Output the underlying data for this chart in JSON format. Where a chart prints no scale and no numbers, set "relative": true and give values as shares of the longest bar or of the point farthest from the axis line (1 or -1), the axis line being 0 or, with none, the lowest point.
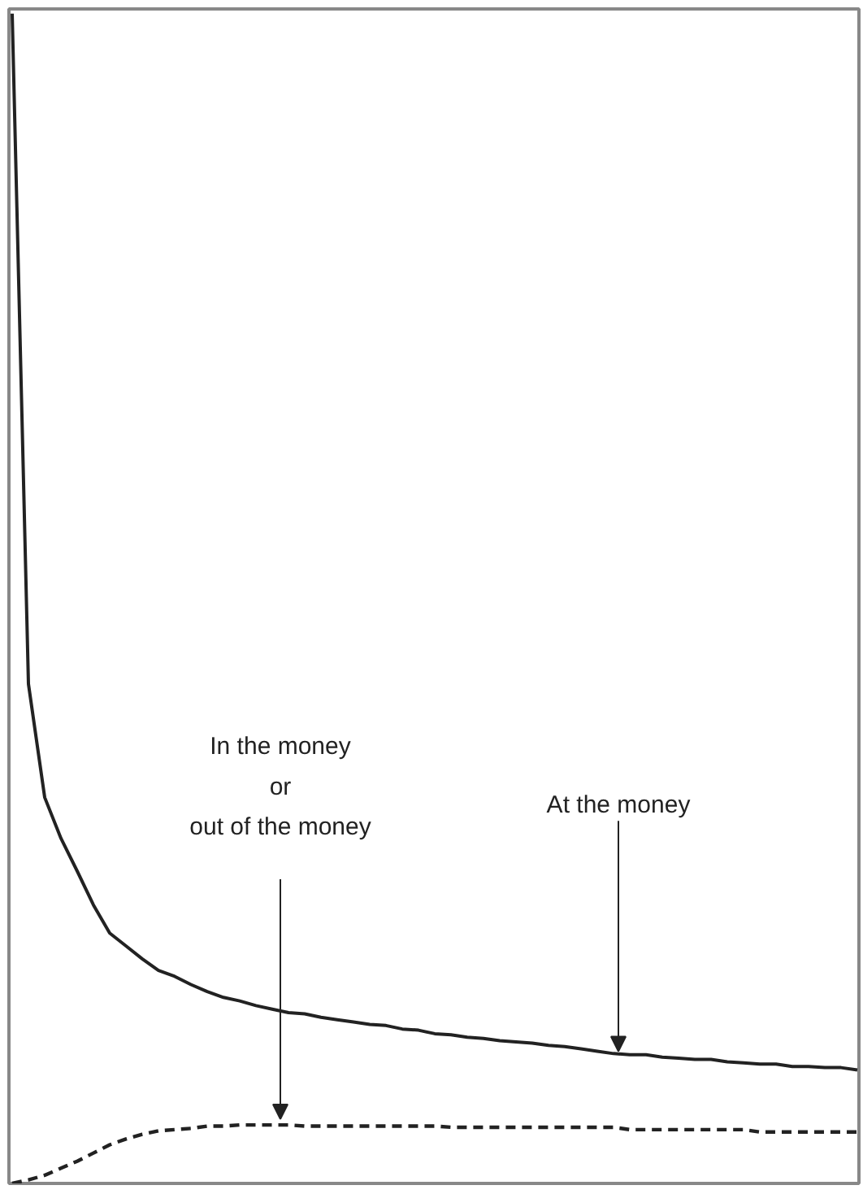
{
  "chart_data": {
    "type": "line",
    "relative": true,
    "grid": false,
    "marker": "none",
    "categories": [
      null,
      null,
      null,
      null,
      null,
      null,
      null,
      null,
      null,
      null,
      null,
      null,
      null,
      null,
      null,
      null,
      null,
      null,
      null,
      null,
      null,
      null,
      null,
      null,
      null,
      null,
      null,
      null,
      null,
      null,
      null,
      null,
      null,
      null,
      null,
      null,
      null,
      null,
      null,
      null,
      null,
      null,
      null,
      null,
      null,
      null,
      null,
      null,
      null,
      null,
      null,
      null,
      null
    ],
    "series": [
      {
        "color": "#222222",
        "line_style": "solid",
        "values": [
          1.0,
          0.427,
          0.33,
          0.295,
          0.267,
          0.238,
          0.214,
          0.203,
          0.192,
          0.182,
          0.177,
          0.17,
          0.164,
          0.159,
          0.156,
          0.152,
          0.149,
          0.146,
          0.145,
          0.142,
          0.14,
          0.138,
          0.136,
          0.135,
          0.132,
          0.131,
          0.128,
          0.127,
          0.125,
          0.124,
          0.122,
          0.121,
          0.12,
          0.118,
          0.117,
          0.115,
          0.113,
          0.111,
          0.11,
          0.11,
          0.108,
          0.107,
          0.106,
          0.106,
          0.104,
          0.103,
          0.102,
          0.102,
          0.1,
          0.1,
          0.099,
          0.099,
          0.097
        ]
      },
      {
        "color": "#222222",
        "line_style": "dashed",
        "values": [
          0.0,
          0.003,
          0.007,
          0.013,
          0.019,
          0.026,
          0.033,
          0.038,
          0.042,
          0.045,
          0.046,
          0.047,
          0.049,
          0.049,
          0.05,
          0.05,
          0.05,
          0.05,
          0.049,
          0.049,
          0.049,
          0.049,
          0.049,
          0.049,
          0.049,
          0.049,
          0.049,
          0.048,
          0.048,
          0.048,
          0.048,
          0.048,
          0.048,
          0.048,
          0.048,
          0.048,
          0.048,
          0.048,
          0.046,
          0.046,
          0.046,
          0.046,
          0.046,
          0.046,
          0.046,
          0.046,
          0.044,
          0.044,
          0.044,
          0.044,
          0.044,
          0.044,
          0.044
        ]
      }
    ],
    "annotations": [
      "In the money\nor\nout of the money",
      "At the money"
    ]
  }
}
